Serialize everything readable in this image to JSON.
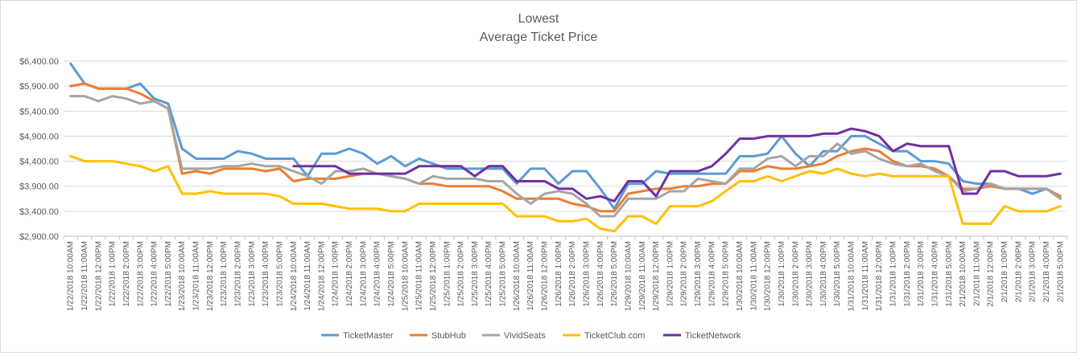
{
  "chart_data": {
    "type": "line",
    "title": "Lowest",
    "subtitle": "Average Ticket Price",
    "xlabel": "",
    "ylabel": "",
    "ylim": [
      2900,
      6400
    ],
    "yticks": [
      2900,
      3400,
      3900,
      4400,
      4900,
      5400,
      5900,
      6400
    ],
    "ytick_labels": [
      "$2,900.00",
      "$3,400.00",
      "$3,900.00",
      "$4,400.00",
      "$4,900.00",
      "$5,400.00",
      "$5,900.00",
      "$6,400.00"
    ],
    "grid": true,
    "legend_position": "bottom",
    "categories": [
      "1/22/2018 10:00AM",
      "1/22/2018 11:00AM",
      "1/22/2018 12:00PM",
      "1/22/2018 1:00PM",
      "1/22/2018 2:00PM",
      "1/22/2018 3:00PM",
      "1/22/2018 4:00PM",
      "1/22/2018 5:00PM",
      "1/23/2018 10:00AM",
      "1/23/2018 11:00AM",
      "1/23/2018 12:00PM",
      "1/23/2018 1:00PM",
      "1/23/2018 2:00PM",
      "1/23/2018 3:00PM",
      "1/23/2018 4:00PM",
      "1/23/2018 5:00PM",
      "1/24/2018 10:00AM",
      "1/24/2018 11:00AM",
      "1/24/2018 12:00PM",
      "1/24/2018 1:00PM",
      "1/24/2018 2:00PM",
      "1/24/2018 3:00PM",
      "1/24/2018 4:00PM",
      "1/24/2018 5:00PM",
      "1/25/2018 10:00AM",
      "1/25/2018 11:00AM",
      "1/25/2018 12:00PM",
      "1/25/2018 1:00PM",
      "1/25/2018 2:00PM",
      "1/25/2018 3:00PM",
      "1/25/2018 4:00PM",
      "1/25/2018 5:00PM",
      "1/26/2018 10:00AM",
      "1/26/2018 11:00AM",
      "1/26/2018 12:00PM",
      "1/26/2018 1:00PM",
      "1/26/2018 2:00PM",
      "1/26/2018 3:00PM",
      "1/26/2018 4:00PM",
      "1/26/2018 5:00PM",
      "1/29/2018 10:00AM",
      "1/29/2018 11:00AM",
      "1/29/2018 12:00PM",
      "1/29/2018 1:00PM",
      "1/29/2018 2:00PM",
      "1/29/2018 3:00PM",
      "1/29/2018 4:00PM",
      "1/29/2018 5:00PM",
      "1/30/2018 10:00AM",
      "1/30/2018 11:00AM",
      "1/30/2018 12:00PM",
      "1/30/2018 1:00PM",
      "1/30/2018 2:00PM",
      "1/30/2018 3:00PM",
      "1/30/2018 4:00PM",
      "1/30/2018 5:00PM",
      "1/31/2018 10:00AM",
      "1/31/2018 11:00AM",
      "1/31/2018 12:00PM",
      "1/31/2018 1:00PM",
      "1/31/2018 2:00PM",
      "1/31/2018 3:00PM",
      "1/31/2018 4:00PM",
      "1/31/2018 5:00PM",
      "2/1/2018 10:00AM",
      "2/1/2018 11:00AM",
      "2/1/2018 12:00PM",
      "2/1/2018 1:00PM",
      "2/1/2018 2:00PM",
      "2/1/2018 3:00PM",
      "2/1/2018 4:00PM",
      "2/1/2018 5:00PM"
    ],
    "series": [
      {
        "name": "TicketMaster",
        "color": "#5B9BD5",
        "values": [
          6350,
          5950,
          5850,
          5850,
          5850,
          5950,
          5650,
          5550,
          4650,
          4450,
          4450,
          4450,
          4600,
          4550,
          4450,
          4450,
          4450,
          4100,
          4550,
          4550,
          4650,
          4550,
          4350,
          4500,
          4300,
          4450,
          4350,
          4250,
          4250,
          4250,
          4250,
          4250,
          3950,
          4250,
          4250,
          3950,
          4200,
          4200,
          3850,
          3450,
          3950,
          3950,
          4200,
          4150,
          4150,
          4150,
          4150,
          4150,
          4500,
          4500,
          4550,
          4900,
          4550,
          4300,
          4600,
          4600,
          4900,
          4900,
          4750,
          4600,
          4600,
          4400,
          4400,
          4350,
          4000,
          3950,
          3950,
          3850,
          3850,
          3750,
          3850,
          3650
        ]
      },
      {
        "name": "StubHub",
        "color": "#ED7D31",
        "values": [
          5900,
          5950,
          5850,
          5850,
          5850,
          5750,
          5600,
          5450,
          4150,
          4200,
          4150,
          4250,
          4250,
          4250,
          4200,
          4250,
          4000,
          4050,
          4050,
          4050,
          4100,
          4150,
          4150,
          4100,
          4050,
          3950,
          3950,
          3900,
          3900,
          3900,
          3900,
          3800,
          3650,
          3650,
          3650,
          3650,
          3550,
          3500,
          3400,
          3400,
          3750,
          3800,
          3850,
          3850,
          3900,
          3900,
          3950,
          3950,
          4200,
          4200,
          4300,
          4250,
          4250,
          4300,
          4350,
          4500,
          4600,
          4650,
          4600,
          4400,
          4300,
          4300,
          4250,
          4100,
          3850,
          3850,
          3900,
          3850,
          3850,
          3850,
          3850,
          3700
        ]
      },
      {
        "name": "VividSeats",
        "color": "#A5A5A5",
        "values": [
          5700,
          5700,
          5600,
          5700,
          5650,
          5550,
          5600,
          5450,
          4250,
          4250,
          4250,
          4300,
          4300,
          4350,
          4300,
          4300,
          4200,
          4100,
          3950,
          4200,
          4200,
          4250,
          4150,
          4100,
          4050,
          3950,
          4100,
          4050,
          4050,
          4050,
          4000,
          4000,
          3750,
          3550,
          3750,
          3800,
          3750,
          3550,
          3300,
          3300,
          3650,
          3650,
          3650,
          3800,
          3800,
          4050,
          4000,
          3950,
          4250,
          4250,
          4450,
          4500,
          4300,
          4500,
          4500,
          4750,
          4550,
          4600,
          4450,
          4350,
          4300,
          4350,
          4200,
          4100,
          3800,
          3850,
          3950,
          3850,
          3850,
          3850,
          3850,
          3650
        ]
      },
      {
        "name": "TicketClub.com",
        "color": "#FFC000",
        "values": [
          4500,
          4400,
          4400,
          4400,
          4350,
          4300,
          4200,
          4300,
          3750,
          3750,
          3800,
          3750,
          3750,
          3750,
          3750,
          3700,
          3550,
          3550,
          3550,
          3500,
          3450,
          3450,
          3450,
          3400,
          3400,
          3550,
          3550,
          3550,
          3550,
          3550,
          3550,
          3550,
          3300,
          3300,
          3300,
          3200,
          3200,
          3250,
          3050,
          3000,
          3300,
          3300,
          3150,
          3500,
          3500,
          3500,
          3600,
          3800,
          4000,
          4000,
          4100,
          4000,
          4100,
          4200,
          4150,
          4250,
          4150,
          4100,
          4150,
          4100,
          4100,
          4100,
          4100,
          4100,
          3150,
          3150,
          3150,
          3500,
          3400,
          3400,
          3400,
          3500
        ]
      },
      {
        "name": "TicketNetwork",
        "color": "#7030A0",
        "values": [
          null,
          null,
          null,
          null,
          null,
          null,
          null,
          null,
          null,
          null,
          null,
          null,
          null,
          null,
          null,
          null,
          4300,
          4300,
          4300,
          4300,
          4150,
          4150,
          4150,
          4150,
          4150,
          4300,
          4300,
          4300,
          4300,
          4100,
          4300,
          4300,
          4000,
          4000,
          4000,
          3850,
          3850,
          3650,
          3700,
          3600,
          4000,
          4000,
          3700,
          4200,
          4200,
          4200,
          4300,
          4550,
          4850,
          4850,
          4900,
          4900,
          4900,
          4900,
          4950,
          4950,
          5050,
          5000,
          4900,
          4600,
          4750,
          4700,
          4700,
          4700,
          3750,
          3750,
          4200,
          4200,
          4100,
          4100,
          4100,
          4150
        ]
      }
    ]
  }
}
